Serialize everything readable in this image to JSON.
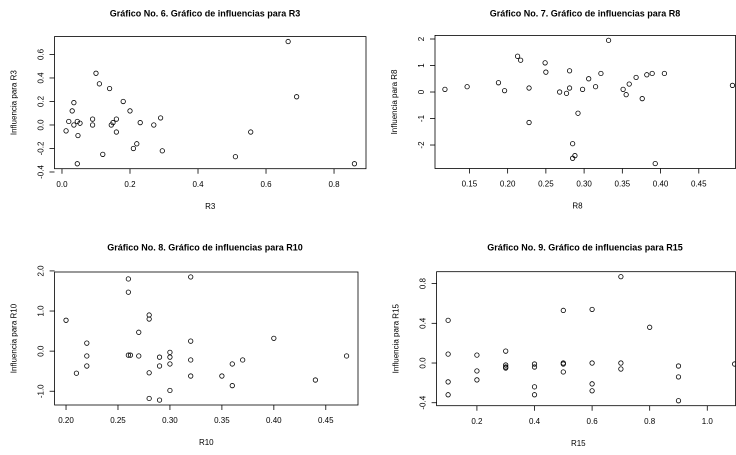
{
  "chart_data": [
    {
      "type": "scatter",
      "title": "Gráfico No. 6. Gráfico de influencias para R3",
      "xlabel": "R3",
      "ylabel": "Influencia para R3",
      "xlim": [
        -0.022,
        0.894
      ],
      "ylim": [
        -0.372,
        0.752
      ],
      "xticks": [
        {
          "value": 0,
          "label": "0.0"
        },
        0.2,
        0.4,
        0.6,
        0.8
      ],
      "yticks": [
        -0.4,
        -0.2,
        {
          "value": 0,
          "label": "0.0"
        },
        0.2,
        0.4,
        0.6
      ],
      "x": [
        0.012,
        0.02,
        0.03,
        0.035,
        0.035,
        0.045,
        0.047,
        0.045,
        0.053,
        0.09,
        0.09,
        0.1,
        0.11,
        0.12,
        0.14,
        0.145,
        0.15,
        0.16,
        0.16,
        0.18,
        0.2,
        0.21,
        0.22,
        0.23,
        0.27,
        0.29,
        0.295,
        0.51,
        0.555,
        0.665,
        0.69,
        0.86
      ],
      "values": [
        -0.05,
        0.03,
        0.12,
        0.19,
        0.0,
        0.03,
        -0.09,
        -0.33,
        0.015,
        0.05,
        0.0,
        0.44,
        0.35,
        -0.25,
        0.31,
        0.0,
        0.02,
        0.05,
        -0.06,
        0.2,
        0.12,
        -0.2,
        -0.16,
        0.02,
        0.0,
        0.06,
        -0.22,
        -0.27,
        -0.06,
        0.71,
        0.24,
        -0.33
      ]
    },
    {
      "type": "scatter",
      "title": "Gráfico No. 7. Gráfico de influencias para R8",
      "xlabel": "R8",
      "ylabel": "Influencia para R8",
      "xlim": [
        0.105,
        0.498
      ],
      "ylim": [
        -2.886,
        2.136
      ],
      "xticks": [
        0.15,
        {
          "value": 0.2,
          "label": "0.20"
        },
        0.25,
        {
          "value": 0.3,
          "label": "0.30"
        },
        0.35,
        {
          "value": 0.4,
          "label": "0.40"
        },
        0.45
      ],
      "yticks": [
        -2,
        -1,
        0,
        1,
        2
      ],
      "x": [
        0.118,
        0.147,
        0.188,
        0.196,
        0.213,
        0.217,
        0.228,
        0.228,
        0.249,
        0.25,
        0.268,
        0.277,
        0.281,
        0.281,
        0.285,
        0.285,
        0.288,
        0.292,
        0.298,
        0.306,
        0.315,
        0.322,
        0.332,
        0.351,
        0.355,
        0.359,
        0.368,
        0.376,
        0.382,
        0.389,
        0.393,
        0.405,
        0.494
      ],
      "values": [
        0.1,
        0.2,
        0.35,
        0.05,
        1.35,
        1.2,
        0.15,
        -1.15,
        1.1,
        0.75,
        0.0,
        -0.05,
        0.15,
        0.8,
        -1.95,
        -2.5,
        -2.4,
        -0.8,
        0.1,
        0.5,
        0.2,
        0.7,
        1.95,
        0.1,
        -0.1,
        0.3,
        0.55,
        -0.25,
        0.65,
        0.7,
        -2.7,
        0.7,
        0.25
      ]
    },
    {
      "type": "scatter",
      "title": "Gráfico No. 8. Gráfico de influencias para R10",
      "xlabel": "R10",
      "ylabel": "Influencia para R10",
      "xlim": [
        0.189,
        0.481
      ],
      "ylim": [
        -1.343,
        1.973
      ],
      "xticks": [
        {
          "value": 0.2,
          "label": "0.20"
        },
        0.25,
        {
          "value": 0.3,
          "label": "0.30"
        },
        0.35,
        {
          "value": 0.4,
          "label": "0.40"
        },
        0.45
      ],
      "yticks": [
        {
          "value": -1,
          "label": "-1.0"
        },
        {
          "value": 0,
          "label": "0.0"
        },
        {
          "value": 1,
          "label": "1.0"
        },
        {
          "value": 2,
          "label": "2.0"
        }
      ],
      "x": [
        0.2,
        0.21,
        0.22,
        0.22,
        0.22,
        0.26,
        0.26,
        0.26,
        0.262,
        0.27,
        0.27,
        0.28,
        0.28,
        0.28,
        0.28,
        0.29,
        0.29,
        0.29,
        0.3,
        0.3,
        0.3,
        0.3,
        0.32,
        0.32,
        0.32,
        0.32,
        0.35,
        0.36,
        0.36,
        0.37,
        0.4,
        0.44,
        0.47
      ],
      "values": [
        0.77,
        -0.55,
        0.2,
        -0.12,
        -0.37,
        1.8,
        1.47,
        -0.1,
        -0.1,
        0.47,
        -0.12,
        0.9,
        0.8,
        -0.54,
        -1.18,
        -0.15,
        -0.37,
        -1.22,
        -0.03,
        -0.15,
        -0.32,
        -0.98,
        1.85,
        0.25,
        -0.22,
        -0.62,
        -0.62,
        -0.32,
        -0.86,
        -0.22,
        0.32,
        -0.72,
        -0.12
      ]
    },
    {
      "type": "scatter",
      "title": "Gráfico No. 9. Gráfico de influencias para R15",
      "xlabel": "R15",
      "ylabel": "Influencia para R15",
      "xlim": [
        0.06,
        1.098
      ],
      "ylim": [
        -0.43,
        0.92
      ],
      "xticks": [
        0.2,
        0.4,
        0.6,
        0.8,
        {
          "value": 1,
          "label": "1.0"
        }
      ],
      "yticks": [
        -0.4,
        {
          "value": 0,
          "label": "0.0"
        },
        0.4,
        0.8
      ],
      "x": [
        0.1,
        0.1,
        0.1,
        0.1,
        0.2,
        0.2,
        0.2,
        0.3,
        0.3,
        0.3,
        0.3,
        0.4,
        0.4,
        0.4,
        0.4,
        0.5,
        0.5,
        0.5,
        0.5,
        0.6,
        0.6,
        0.6,
        0.6,
        0.7,
        0.7,
        0.7,
        0.8,
        0.9,
        0.9,
        0.9,
        1.095
      ],
      "values": [
        0.43,
        0.09,
        -0.19,
        -0.32,
        0.08,
        -0.08,
        -0.17,
        0.12,
        -0.02,
        -0.04,
        -0.05,
        -0.01,
        -0.04,
        -0.24,
        -0.32,
        0.53,
        0.0,
        -0.01,
        -0.09,
        0.54,
        0.0,
        -0.21,
        -0.28,
        0.87,
        0.0,
        -0.06,
        0.36,
        -0.03,
        -0.14,
        -0.38,
        -0.01
      ]
    }
  ]
}
